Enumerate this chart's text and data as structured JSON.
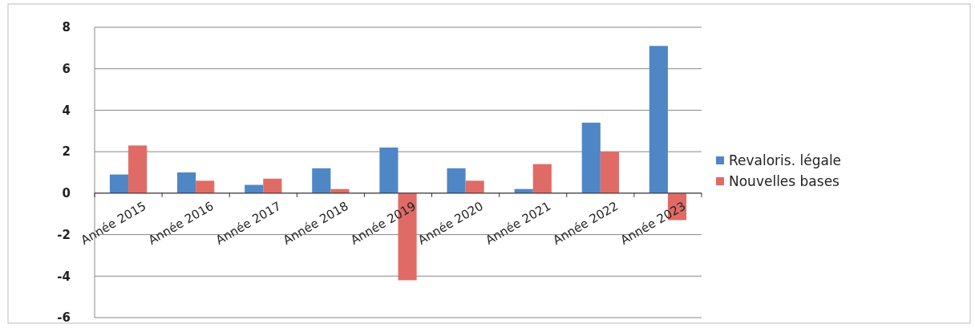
{
  "chart_data": {
    "type": "bar",
    "categories": [
      "Année 2015",
      "Année 2016",
      "Année 2017",
      "Année 2018",
      "Année 2019",
      "Année 2020",
      "Année 2021",
      "Année 2022",
      "Année 2023"
    ],
    "series": [
      {
        "name": "Revaloris. légale",
        "color": "#4f86c6",
        "values": [
          0.9,
          1.0,
          0.4,
          1.2,
          2.2,
          1.2,
          0.2,
          3.4,
          7.1
        ]
      },
      {
        "name": "Nouvelles bases",
        "color": "#e06b66",
        "values": [
          2.3,
          0.6,
          0.7,
          0.2,
          -4.2,
          0.6,
          1.4,
          2.0,
          -1.3
        ]
      }
    ],
    "ylim": [
      -6,
      8
    ],
    "yticks": [
      -6,
      -4,
      -2,
      0,
      2,
      4,
      6,
      8
    ],
    "grid": "y",
    "legend": "right"
  }
}
